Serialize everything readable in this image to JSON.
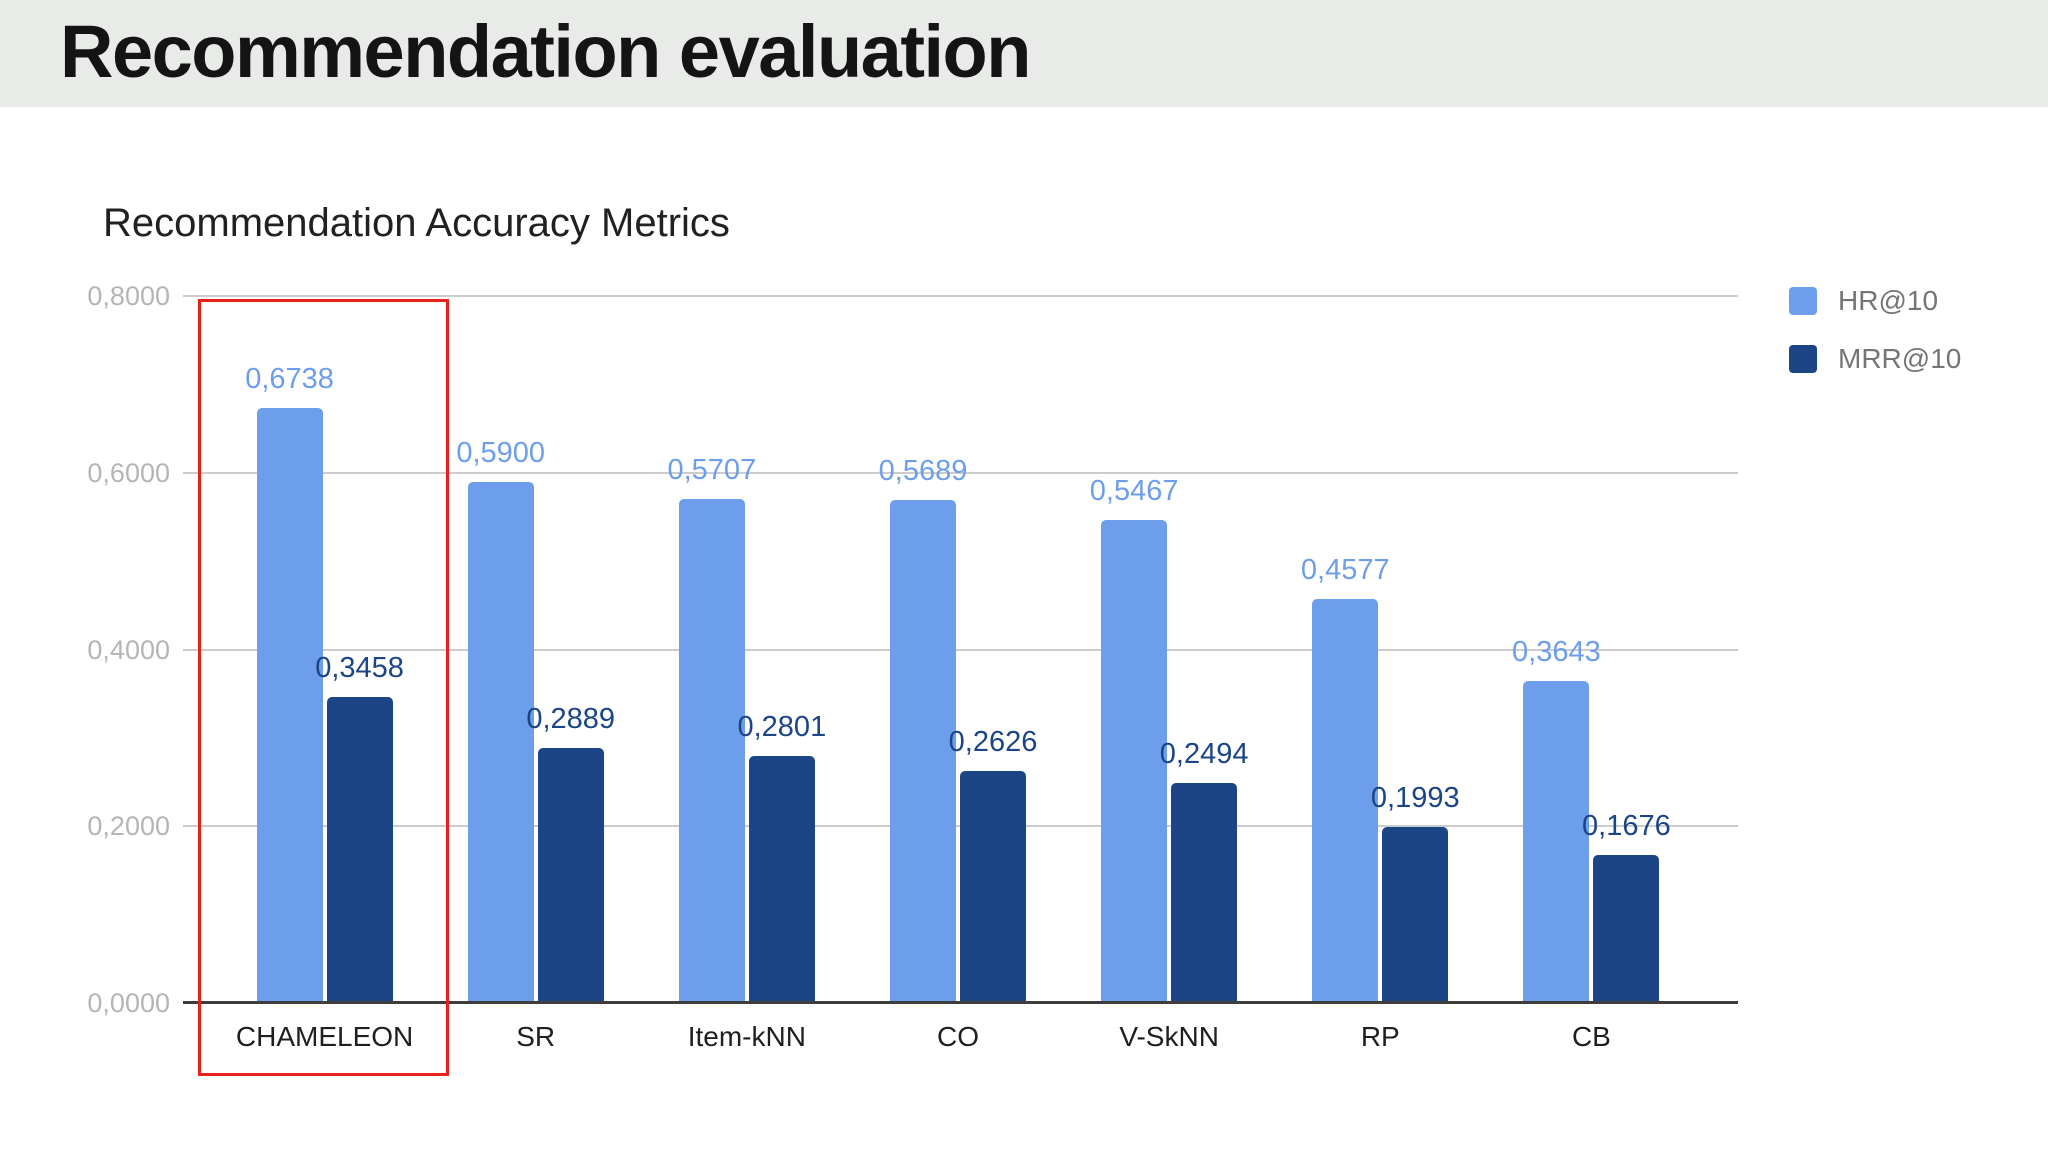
{
  "header": {
    "title": "Recommendation evaluation"
  },
  "chart_data": {
    "type": "bar",
    "title": "Recommendation Accuracy Metrics",
    "categories": [
      "CHAMELEON",
      "SR",
      "Item-kNN",
      "CO",
      "V-SkNN",
      "RP",
      "CB"
    ],
    "series": [
      {
        "name": "HR@10",
        "color": "#6d9eeb",
        "label_color": "#6d9eeb",
        "values": [
          0.6738,
          0.59,
          0.5707,
          0.5689,
          0.5467,
          0.4577,
          0.3643
        ],
        "labels": [
          "0,6738",
          "0,5900",
          "0,5707",
          "0,5689",
          "0,5467",
          "0,4577",
          "0,3643"
        ]
      },
      {
        "name": "MRR@10",
        "color": "#1c4587",
        "label_color": "#1c4587",
        "values": [
          0.3458,
          0.2889,
          0.2801,
          0.2626,
          0.2494,
          0.1993,
          0.1676
        ],
        "labels": [
          "0,3458",
          "0,2889",
          "0,2801",
          "0,2626",
          "0,2494",
          "0,1993",
          "0,1676"
        ]
      }
    ],
    "ylim": [
      0,
      0.8
    ],
    "y_ticks": [
      "0,8000",
      "0,6000",
      "0,4000",
      "0,2000",
      "0,0000"
    ],
    "grid": true,
    "legend_position": "top-right",
    "annotations": [
      {
        "type": "highlight-box",
        "target": "CHAMELEON",
        "color": "#e8211a"
      }
    ]
  },
  "colors": {
    "header_bg": "#e8ebe8",
    "header_text": "#141414",
    "chart_title": "#212121",
    "axis_tick_label": "#b5b5b5",
    "category_label": "#1f1f1f",
    "gridline": "#cccccc",
    "baseline": "#3d3d3d",
    "legend_text": "#757575",
    "highlight": "#e8211a"
  }
}
